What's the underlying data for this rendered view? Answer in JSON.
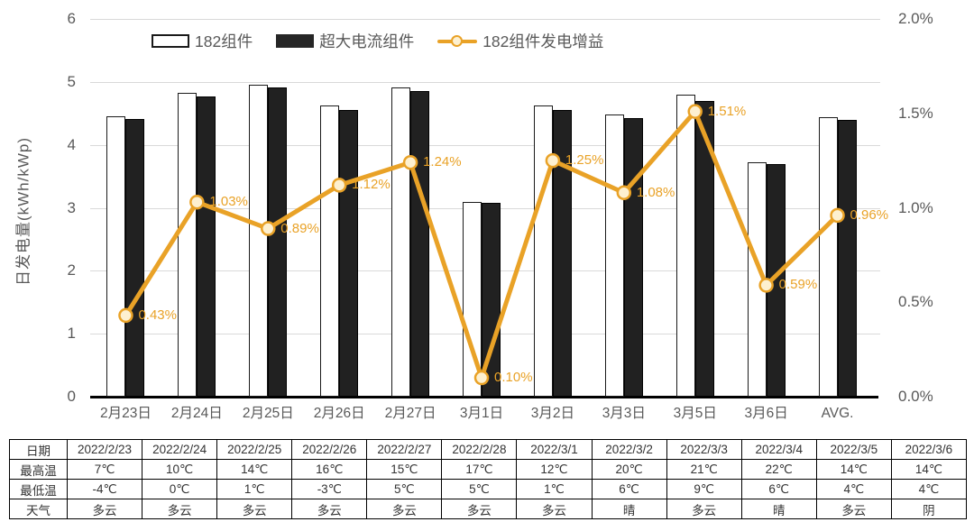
{
  "colors": {
    "accent_orange": "#e9a227",
    "marker_fill": "#fdf0d0",
    "bar_dark": "#212121",
    "bar_light": "#ffffff",
    "axis_text": "#595959",
    "gridline": "#d9d9d9"
  },
  "chart_data": {
    "type": "bar+line combo",
    "title": "",
    "ylabel_left": "日发电量(kWh/kWp)",
    "left_axis": {
      "min": 0,
      "max": 6,
      "step": 1,
      "tick_labels": [
        "0",
        "1",
        "2",
        "3",
        "4",
        "5",
        "6"
      ]
    },
    "right_axis": {
      "min": 0,
      "max": 2,
      "step": 0.5,
      "tick_labels": [
        "0.0%",
        "0.5%",
        "1.0%",
        "1.5%",
        "2.0%"
      ]
    },
    "grid": true,
    "legend_position": "top-center",
    "categories": [
      "2月23日",
      "2月24日",
      "2月25日",
      "2月26日",
      "2月27日",
      "3月1日",
      "3月2日",
      "3月3日",
      "3月5日",
      "3月6日",
      "AVG."
    ],
    "series": [
      {
        "name": "182组件",
        "type": "bar",
        "style": "outline",
        "values": [
          4.45,
          4.82,
          4.96,
          4.62,
          4.91,
          3.1,
          4.62,
          4.48,
          4.79,
          3.72,
          4.44
        ]
      },
      {
        "name": "超大电流组件",
        "type": "bar",
        "style": "solid",
        "values": [
          4.41,
          4.77,
          4.91,
          4.56,
          4.85,
          3.08,
          4.56,
          4.42,
          4.69,
          3.69,
          4.39
        ]
      },
      {
        "name": "182组件发电增益",
        "type": "line",
        "axis": "right",
        "values": [
          0.43,
          1.03,
          0.89,
          1.12,
          1.24,
          0.1,
          1.25,
          1.08,
          1.51,
          0.59,
          0.96
        ],
        "data_labels": [
          "0.43%",
          "1.03%",
          "0.89%",
          "1.12%",
          "1.24%",
          "0.10%",
          "1.25%",
          "1.08%",
          "1.51%",
          "0.59%",
          "0.96%"
        ]
      }
    ]
  },
  "legend": {
    "items": [
      {
        "label": "182组件",
        "swatch": "bar-outline"
      },
      {
        "label": "超大电流组件",
        "swatch": "bar-solid"
      },
      {
        "label": "182组件发电增益",
        "swatch": "line-marker"
      }
    ]
  },
  "table": {
    "row_headers": [
      "日期",
      "最高温",
      "最低温",
      "天气"
    ],
    "dates": [
      "2022/2/23",
      "2022/2/24",
      "2022/2/25",
      "2022/2/26",
      "2022/2/27",
      "2022/2/28",
      "2022/3/1",
      "2022/3/2",
      "2022/3/3",
      "2022/3/4",
      "2022/3/5",
      "2022/3/6"
    ],
    "max_temp": [
      "7℃",
      "10℃",
      "14℃",
      "16℃",
      "15℃",
      "17℃",
      "12℃",
      "20℃",
      "21℃",
      "22℃",
      "14℃",
      "14℃"
    ],
    "min_temp": [
      "-4℃",
      "0℃",
      "1℃",
      "-3℃",
      "5℃",
      "5℃",
      "1℃",
      "6℃",
      "9℃",
      "6℃",
      "4℃",
      "4℃"
    ],
    "weather": [
      "多云",
      "多云",
      "多云",
      "多云",
      "多云",
      "多云",
      "多云",
      "晴",
      "多云",
      "晴",
      "多云",
      "阴"
    ]
  }
}
